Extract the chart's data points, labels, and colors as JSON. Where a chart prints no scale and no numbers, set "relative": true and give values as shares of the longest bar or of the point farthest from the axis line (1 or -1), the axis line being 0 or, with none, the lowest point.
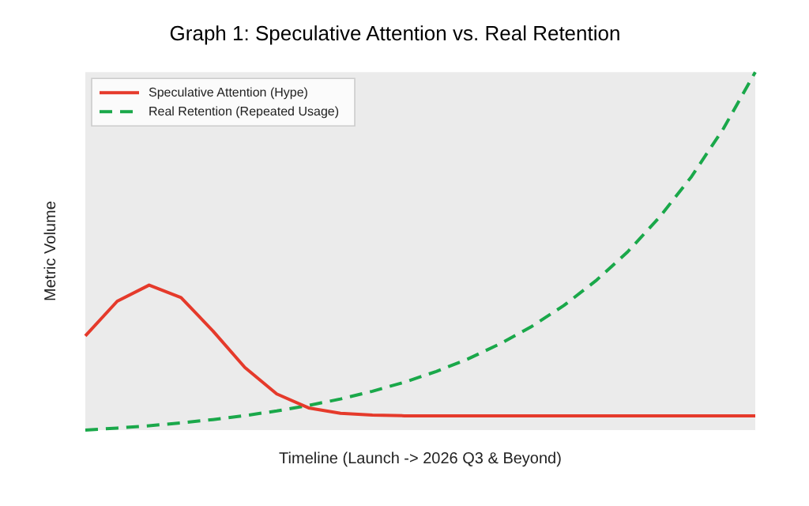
{
  "chart_data": {
    "type": "line",
    "title": "Graph 1: Speculative Attention vs. Real Retention",
    "xlabel": "Timeline (Launch -> 2026 Q3 & Beyond)",
    "ylabel": "Metric Volume",
    "relative": true,
    "tick_labels": false,
    "grid": false,
    "legend": "top left",
    "marker": "none",
    "categories": [
      null,
      null,
      null,
      null,
      null,
      null,
      null,
      null,
      null,
      null,
      null,
      null,
      null,
      null,
      null,
      null,
      null,
      null,
      null,
      null,
      null,
      null
    ],
    "series": [
      {
        "name": "Speculative Attention (Hype)",
        "color": "#e53a2b",
        "line_style": "solid",
        "values": [
          0.263,
          0.36,
          0.405,
          0.37,
          0.277,
          0.175,
          0.101,
          0.062,
          0.047,
          0.042,
          0.04,
          0.04,
          0.04,
          0.04,
          0.04,
          0.04,
          0.04,
          0.04,
          0.04,
          0.04,
          0.04,
          0.04
        ]
      },
      {
        "name": "Real Retention (Repeated Usage)",
        "color": "#1aa84a",
        "line_style": "dashed",
        "values": [
          0,
          0.0056,
          0.0123,
          0.0202,
          0.0295,
          0.0405,
          0.0535,
          0.0689,
          0.087,
          0.1085,
          0.1338,
          0.1637,
          0.199,
          0.241,
          0.29,
          0.348,
          0.417,
          0.498,
          0.595,
          0.708,
          0.842,
          1
        ]
      }
    ]
  }
}
